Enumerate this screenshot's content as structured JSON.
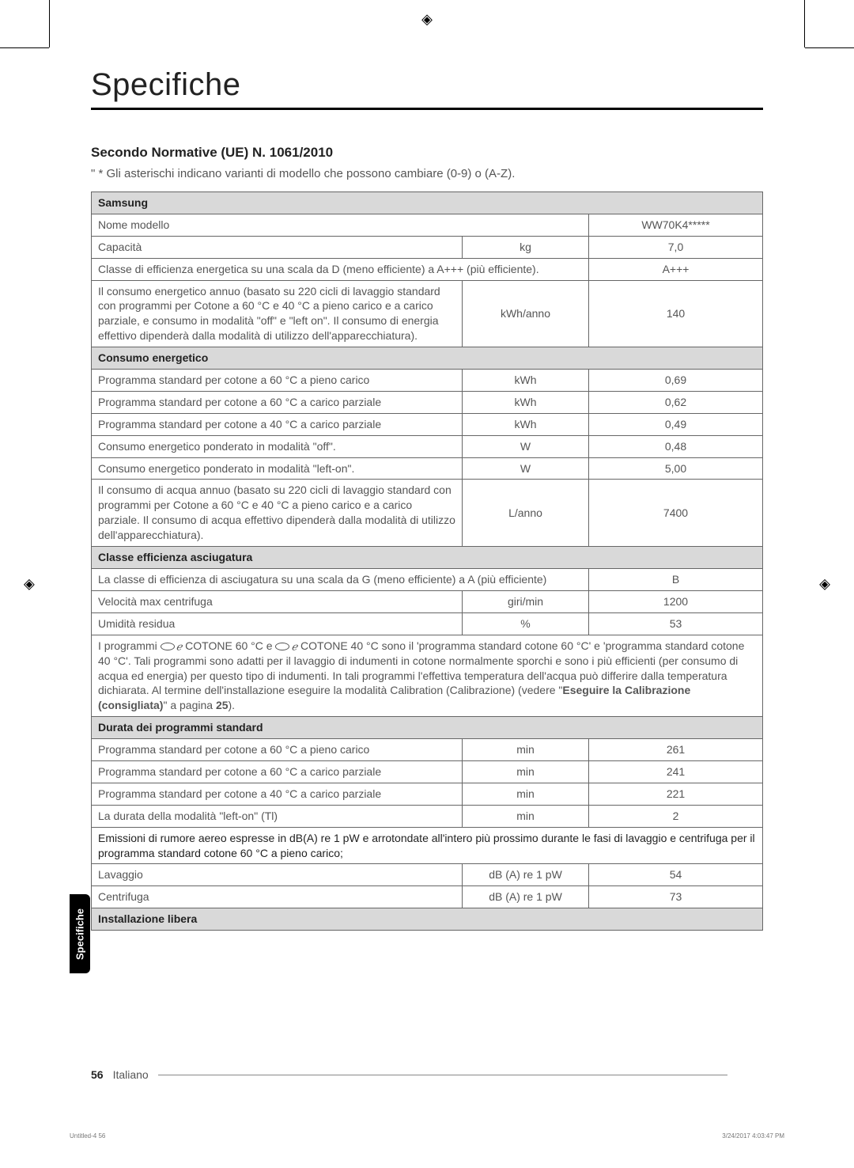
{
  "page": {
    "title": "Specifiche",
    "subtitle": "Secondo Normative (UE) N. 1061/2010",
    "note": "\" * Gli asterischi indicano varianti di modello che possono cambiare (0-9) o (A-Z).",
    "sidetab": "Specifiche",
    "footer_page": "56",
    "footer_lang": "Italiano",
    "imprint_left": "Untitled-4   56",
    "imprint_right": "3/24/2017   4:03:47 PM"
  },
  "table": {
    "brand": "Samsung",
    "model_label": "Nome modello",
    "model_value": "WW70K4*****",
    "capacity_label": "Capacità",
    "capacity_unit": "kg",
    "capacity_value": "7,0",
    "eff_class_label": "Classe di efficienza energetica su una scala da D (meno efficiente) a A+++ (più efficiente).",
    "eff_class_value": "A+++",
    "annual_energy_label": "Il consumo energetico annuo (basato su 220 cicli di lavaggio standard con programmi per Cotone a 60 °C e 40 °C a pieno carico e a carico parziale, e consumo in modalità \"off\" e \"left on\". Il consumo di energia effettivo dipenderà dalla modalità di utilizzo dell'apparecchiatura).",
    "annual_energy_unit": "kWh/anno",
    "annual_energy_value": "140",
    "sec_energy": "Consumo energetico",
    "e60full_label": "Programma standard per cotone a 60 °C a pieno carico",
    "e60full_unit": "kWh",
    "e60full_value": "0,69",
    "e60half_label": "Programma standard per cotone a 60 °C a carico parziale",
    "e60half_unit": "kWh",
    "e60half_value": "0,62",
    "e40half_label": "Programma standard per cotone a 40 °C a carico parziale",
    "e40half_unit": "kWh",
    "e40half_value": "0,49",
    "off_label": "Consumo energetico ponderato in modalità \"off\".",
    "off_unit": "W",
    "off_value": "0,48",
    "lefton_label": "Consumo energetico ponderato in modalità \"left-on\".",
    "lefton_unit": "W",
    "lefton_value": "5,00",
    "water_label": "Il consumo di acqua annuo (basato su 220 cicli di lavaggio standard con programmi per Cotone a 60 °C e 40 °C a pieno carico e a carico parziale. Il consumo di acqua effettivo dipenderà dalla modalità di utilizzo dell'apparecchiatura).",
    "water_unit": "L/anno",
    "water_value": "7400",
    "sec_spin": "Classe efficienza asciugatura",
    "spin_class_label": "La classe di efficienza di asciugatura su una scala da G (meno efficiente) a A (più efficiente)",
    "spin_class_value": "B",
    "spin_speed_label": "Velocità max centrifuga",
    "spin_speed_unit": "giri/min",
    "spin_speed_value": "1200",
    "humidity_label": "Umidità residua",
    "humidity_unit": "%",
    "humidity_value": "53",
    "programs_note_pre": "I programmi ",
    "programs_note_mid1": " COTONE 60 °C e ",
    "programs_note_mid2": " COTONE  40 °C sono il 'programma standard cotone 60 °C' e 'programma standard cotone 40 °C'. Tali programmi sono adatti per il lavaggio di indumenti in cotone normalmente sporchi e sono i più efficienti (per consumo di acqua ed energia) per questo tipo di indumenti. In tali programmi l'effettiva temperatura dell'acqua può differire dalla temperatura dichiarata. Al termine dell'installazione eseguire la modalità Calibration (Calibrazione) (vedere \"",
    "programs_note_bold": "Eseguire la Calibrazione (consigliata)",
    "programs_note_post": "\" a pagina ",
    "programs_note_page": "25",
    "programs_note_end": ").",
    "sec_duration": "Durata dei programmi standard",
    "d60full_label": "Programma standard per cotone a 60 °C a pieno carico",
    "d60full_unit": "min",
    "d60full_value": "261",
    "d60half_label": "Programma standard per cotone a 60 °C a carico parziale",
    "d60half_unit": "min",
    "d60half_value": "241",
    "d40half_label": "Programma standard per cotone a 40 °C a carico parziale",
    "d40half_unit": "min",
    "d40half_value": "221",
    "lefton_dur_label": "La durata della modalità \"left-on\" (Tl)",
    "lefton_dur_unit": "min",
    "lefton_dur_value": "2",
    "noise_note": "Emissioni di rumore aereo espresse in dB(A) re 1 pW e arrotondate all'intero più prossimo durante le fasi di lavaggio e centrifuga per il programma standard cotone 60 °C a pieno carico;",
    "wash_label": "Lavaggio",
    "wash_unit": "dB (A) re 1 pW",
    "wash_value": "54",
    "spin_label": "Centrifuga",
    "spin_unit": "dB (A) re 1 pW",
    "spin_value": "73",
    "install": "Installazione libera"
  }
}
